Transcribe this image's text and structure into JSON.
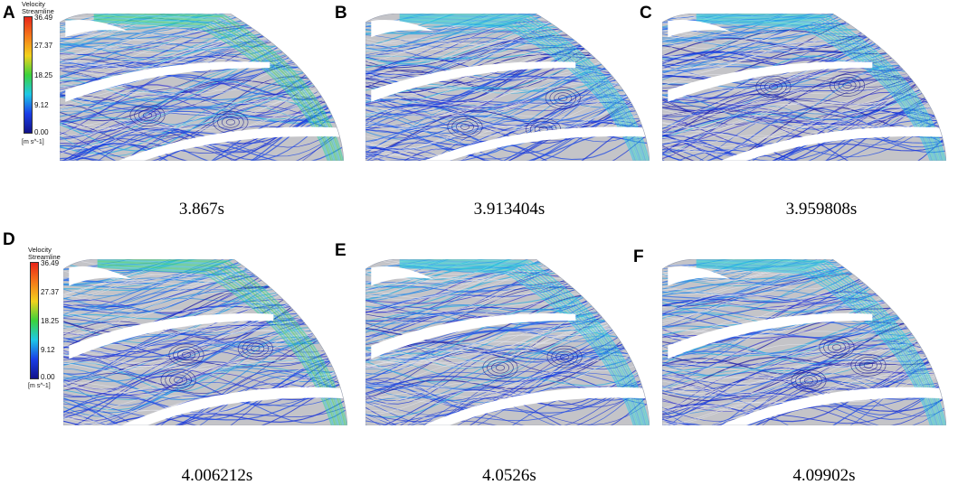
{
  "legend": {
    "title_line1": "Velocity",
    "title_line2": "Streamline",
    "ticks": [
      "36.49",
      "27.37",
      "18.25",
      "9.12",
      "0.00"
    ],
    "unit": "[m s^-1]",
    "colormap": [
      "#e8251a",
      "#f57a1a",
      "#f2d21c",
      "#3bd23b",
      "#1ec8e6",
      "#1a3ee8",
      "#12128a"
    ]
  },
  "panels": [
    {
      "letter": "A",
      "time": "3.867s"
    },
    {
      "letter": "B",
      "time": "3.913404s"
    },
    {
      "letter": "C",
      "time": "3.959808s"
    },
    {
      "letter": "D",
      "time": "4.006212s"
    },
    {
      "letter": "E",
      "time": "4.0526s"
    },
    {
      "letter": "F",
      "time": "4.09902s"
    }
  ]
}
